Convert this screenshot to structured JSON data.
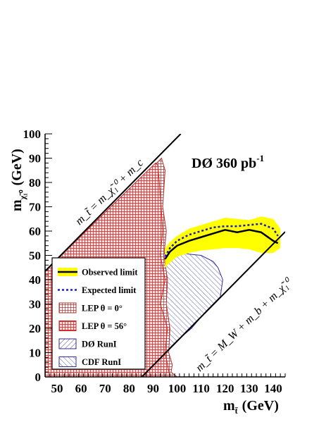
{
  "chart_data": {
    "type": "line",
    "xlim": [
      45,
      145
    ],
    "ylim": [
      0,
      100
    ],
    "x_ticks": [
      50,
      60,
      70,
      80,
      90,
      100,
      110,
      120,
      130,
      140
    ],
    "y_ticks": [
      0,
      10,
      20,
      30,
      40,
      50,
      60,
      70,
      80,
      90,
      100
    ],
    "xlabel": "m",
    "xlabel_sub": "t̃",
    "xlabel_unit": "(GeV)",
    "ylabel": "m",
    "ylabel_sub": "χ̃₁⁰",
    "ylabel_unit": "(GeV)",
    "experiment_label": "DØ 360 pb",
    "experiment_sup": "-1",
    "diag_upper": {
      "label": "m_t̃ = m_χ̃₁⁰ + m_c",
      "points": [
        [
          45,
          43.5
        ],
        [
          101.5,
          100
        ]
      ]
    },
    "diag_lower": {
      "label": "m_t̃ = M_W + m_b + m_χ̃₁⁰",
      "points": [
        [
          85.3,
          0
        ],
        [
          145,
          59.7
        ]
      ]
    },
    "series": [
      {
        "name": "Observed limit",
        "style": "solid",
        "color": "#000000",
        "x": [
          95,
          97,
          100,
          105,
          110,
          115,
          120,
          125,
          130,
          135,
          140,
          142
        ],
        "y": [
          48.5,
          51.5,
          54,
          56,
          57.5,
          59,
          60.5,
          59.5,
          60.5,
          59.5,
          56,
          55
        ]
      },
      {
        "name": "Expected limit",
        "style": "dotted",
        "color": "#1a1acc",
        "x": [
          95,
          97,
          100,
          105,
          110,
          115,
          120,
          125,
          130,
          135,
          140,
          142
        ],
        "y": [
          49.5,
          53,
          56,
          58.5,
          60,
          61.5,
          62,
          62,
          62.5,
          63,
          61,
          58
        ]
      }
    ],
    "expected_band": {
      "color": "#ffff00",
      "x": [
        95,
        97,
        100,
        105,
        110,
        115,
        120,
        125,
        130,
        135,
        140,
        143
      ],
      "upper": [
        53,
        55.5,
        58,
        61,
        62.5,
        64,
        65.5,
        65,
        64.5,
        66,
        65,
        61
      ],
      "lower": [
        45,
        47,
        49.5,
        51,
        52,
        52.5,
        53,
        53,
        52.5,
        51,
        51,
        53
      ]
    },
    "excluded_regions": [
      {
        "name": "LEP θ = 0°",
        "hatch": "grid",
        "color": "#b03030",
        "x": [
          45,
          45,
          91.5,
          93.5,
          95,
          94,
          95.5,
          94.5,
          96,
          95.5,
          97,
          96.5,
          98,
          97.5,
          100,
          45
        ],
        "y": [
          0,
          43.5,
          88,
          90,
          85,
          70,
          60,
          50,
          40,
          30,
          20,
          10,
          5,
          2,
          0,
          0
        ]
      },
      {
        "name": "LEP θ = 56°",
        "hatch": "finegrid",
        "color": "#cc2222",
        "x": [
          45,
          45,
          91,
          92,
          93,
          94,
          93,
          95,
          93,
          96,
          95,
          97,
          45
        ],
        "y": [
          0,
          43.5,
          88,
          87,
          75,
          60,
          50,
          40,
          30,
          20,
          10,
          0,
          0
        ]
      },
      {
        "name": "DØ RunI",
        "hatch": "diag-right",
        "color": "#3a2a8a",
        "x": [
          75,
          78,
          80,
          83,
          86,
          89,
          90,
          90,
          80,
          75
        ],
        "y": [
          0,
          46,
          48,
          49,
          49.5,
          50,
          51,
          0,
          0,
          0
        ]
      },
      {
        "name": "CDF RunI",
        "hatch": "diag-left",
        "color": "#3030a0",
        "x": [
          86,
          89,
          95,
          100,
          105,
          110,
          115,
          117,
          119,
          118,
          112,
          106,
          100,
          95,
          91,
          86
        ],
        "y": [
          48,
          50,
          51,
          51.5,
          50.5,
          50,
          47.5,
          45,
          40,
          33,
          27,
          20,
          15,
          10,
          5,
          0
        ]
      }
    ],
    "legend": {
      "placement": "bottom-left",
      "entries": [
        {
          "label": "Observed limit",
          "symbol": "band-line"
        },
        {
          "label": "Expected limit",
          "symbol": "dotted"
        },
        {
          "label": "LEP    θ = 0°",
          "symbol": "box-grid"
        },
        {
          "label": "LEP    θ = 56°",
          "symbol": "box-finegrid"
        },
        {
          "label": "DØ RunI",
          "symbol": "box-diag-right"
        },
        {
          "label": "CDF RunI",
          "symbol": "box-diag-left"
        }
      ]
    }
  }
}
